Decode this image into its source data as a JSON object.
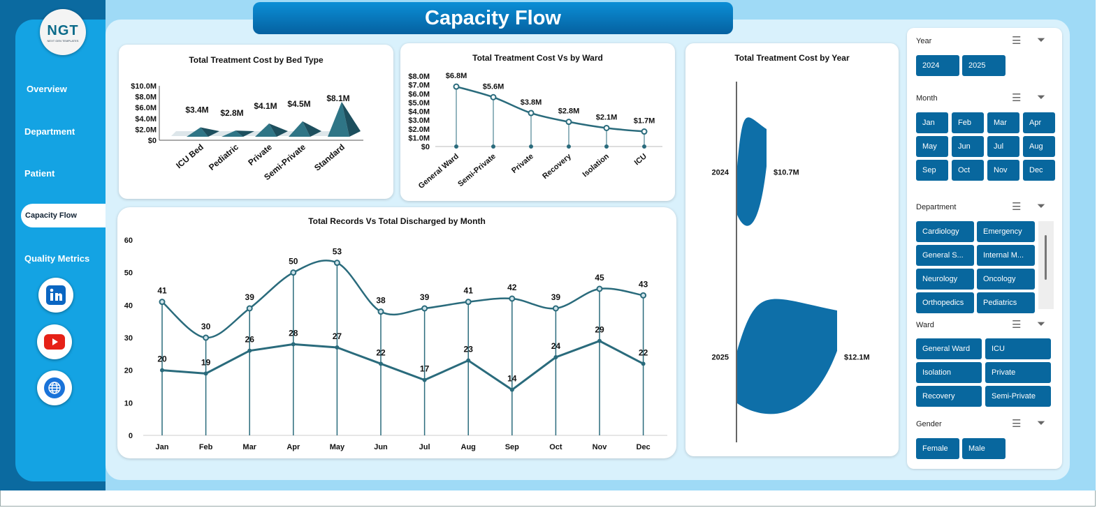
{
  "title": "Capacity Flow",
  "logo": {
    "text": "NGT",
    "sub": "NEXT GEN TEMPLATES"
  },
  "nav": [
    {
      "label": "Overview"
    },
    {
      "label": "Department"
    },
    {
      "label": "Patient"
    },
    {
      "label": "Capacity  Flow",
      "active": true
    },
    {
      "label": "Quality Metrics"
    }
  ],
  "social": [
    "linkedin-icon",
    "youtube-icon",
    "globe-icon"
  ],
  "colors": {
    "accent": "#08679e",
    "chart": "#2a6b7c",
    "sidebar": "#14a3e3"
  },
  "chart_data": [
    {
      "type": "bar",
      "title": "Total Treatment Cost by Bed Type",
      "categories": [
        "ICU Bed",
        "Pediatric",
        "Private",
        "Semi-Private",
        "Standard"
      ],
      "values": [
        3.4,
        2.8,
        4.1,
        4.5,
        8.1
      ],
      "labels": [
        "$3.4M",
        "$2.8M",
        "$4.1M",
        "$4.5M",
        "$8.1M"
      ],
      "yticks": [
        "$0",
        "$2.0M",
        "$4.0M",
        "$6.0M",
        "$8.0M",
        "$10.0M"
      ],
      "ylim": [
        0,
        10
      ],
      "shape": "pyramid"
    },
    {
      "type": "line",
      "title": "Total Treatment Cost Vs  by Ward",
      "categories": [
        "General Ward",
        "Semi-Private",
        "Private",
        "Recovery",
        "Isolation",
        "ICU"
      ],
      "values": [
        6.8,
        5.6,
        3.8,
        2.8,
        2.1,
        1.7
      ],
      "labels": [
        "$6.8M",
        "$5.6M",
        "$3.8M",
        "$2.8M",
        "$2.1M",
        "$1.7M"
      ],
      "yticks": [
        "$0",
        "$1.0M",
        "$2.0M",
        "$3.0M",
        "$4.0M",
        "$5.0M",
        "$6.0M",
        "$7.0M",
        "$8.0M"
      ],
      "ylim": [
        0,
        8
      ]
    },
    {
      "type": "bar",
      "title": "Total Treatment Cost by Year",
      "categories": [
        "2024",
        "2025"
      ],
      "values": [
        10.7,
        12.1
      ],
      "labels": [
        "$10.7M",
        "$12.1M"
      ]
    },
    {
      "type": "line",
      "title": "Total Records Vs Total Discharged by Month",
      "categories": [
        "Jan",
        "Feb",
        "Mar",
        "Apr",
        "May",
        "Jun",
        "Jul",
        "Aug",
        "Sep",
        "Oct",
        "Nov",
        "Dec"
      ],
      "series": [
        {
          "values": [
            41,
            30,
            39,
            50,
            53,
            38,
            39,
            41,
            42,
            39,
            45,
            43
          ]
        },
        {
          "values": [
            20,
            19,
            26,
            28,
            27,
            22,
            17,
            23,
            14,
            24,
            29,
            22
          ]
        }
      ],
      "yticks": [
        "0",
        "10",
        "20",
        "30",
        "40",
        "50",
        "60"
      ],
      "ylim": [
        0,
        60
      ]
    }
  ],
  "slicers": [
    {
      "title": "Year",
      "items": [
        "2024",
        "2025"
      ]
    },
    {
      "title": "Month",
      "items": [
        "Jan",
        "Feb",
        "Mar",
        "Apr",
        "May",
        "Jun",
        "Jul",
        "Aug",
        "Sep",
        "Oct",
        "Nov",
        "Dec"
      ]
    },
    {
      "title": "Department",
      "items": [
        "Cardiology",
        "Emergency",
        "General S...",
        "Internal M...",
        "Neurology",
        "Oncology",
        "Orthopedics",
        "Pediatrics"
      ]
    },
    {
      "title": "Ward",
      "items": [
        "General Ward",
        "ICU",
        "Isolation",
        "Private",
        "Recovery",
        "Semi-Private"
      ]
    },
    {
      "title": "Gender",
      "items": [
        "Female",
        "Male"
      ]
    }
  ]
}
